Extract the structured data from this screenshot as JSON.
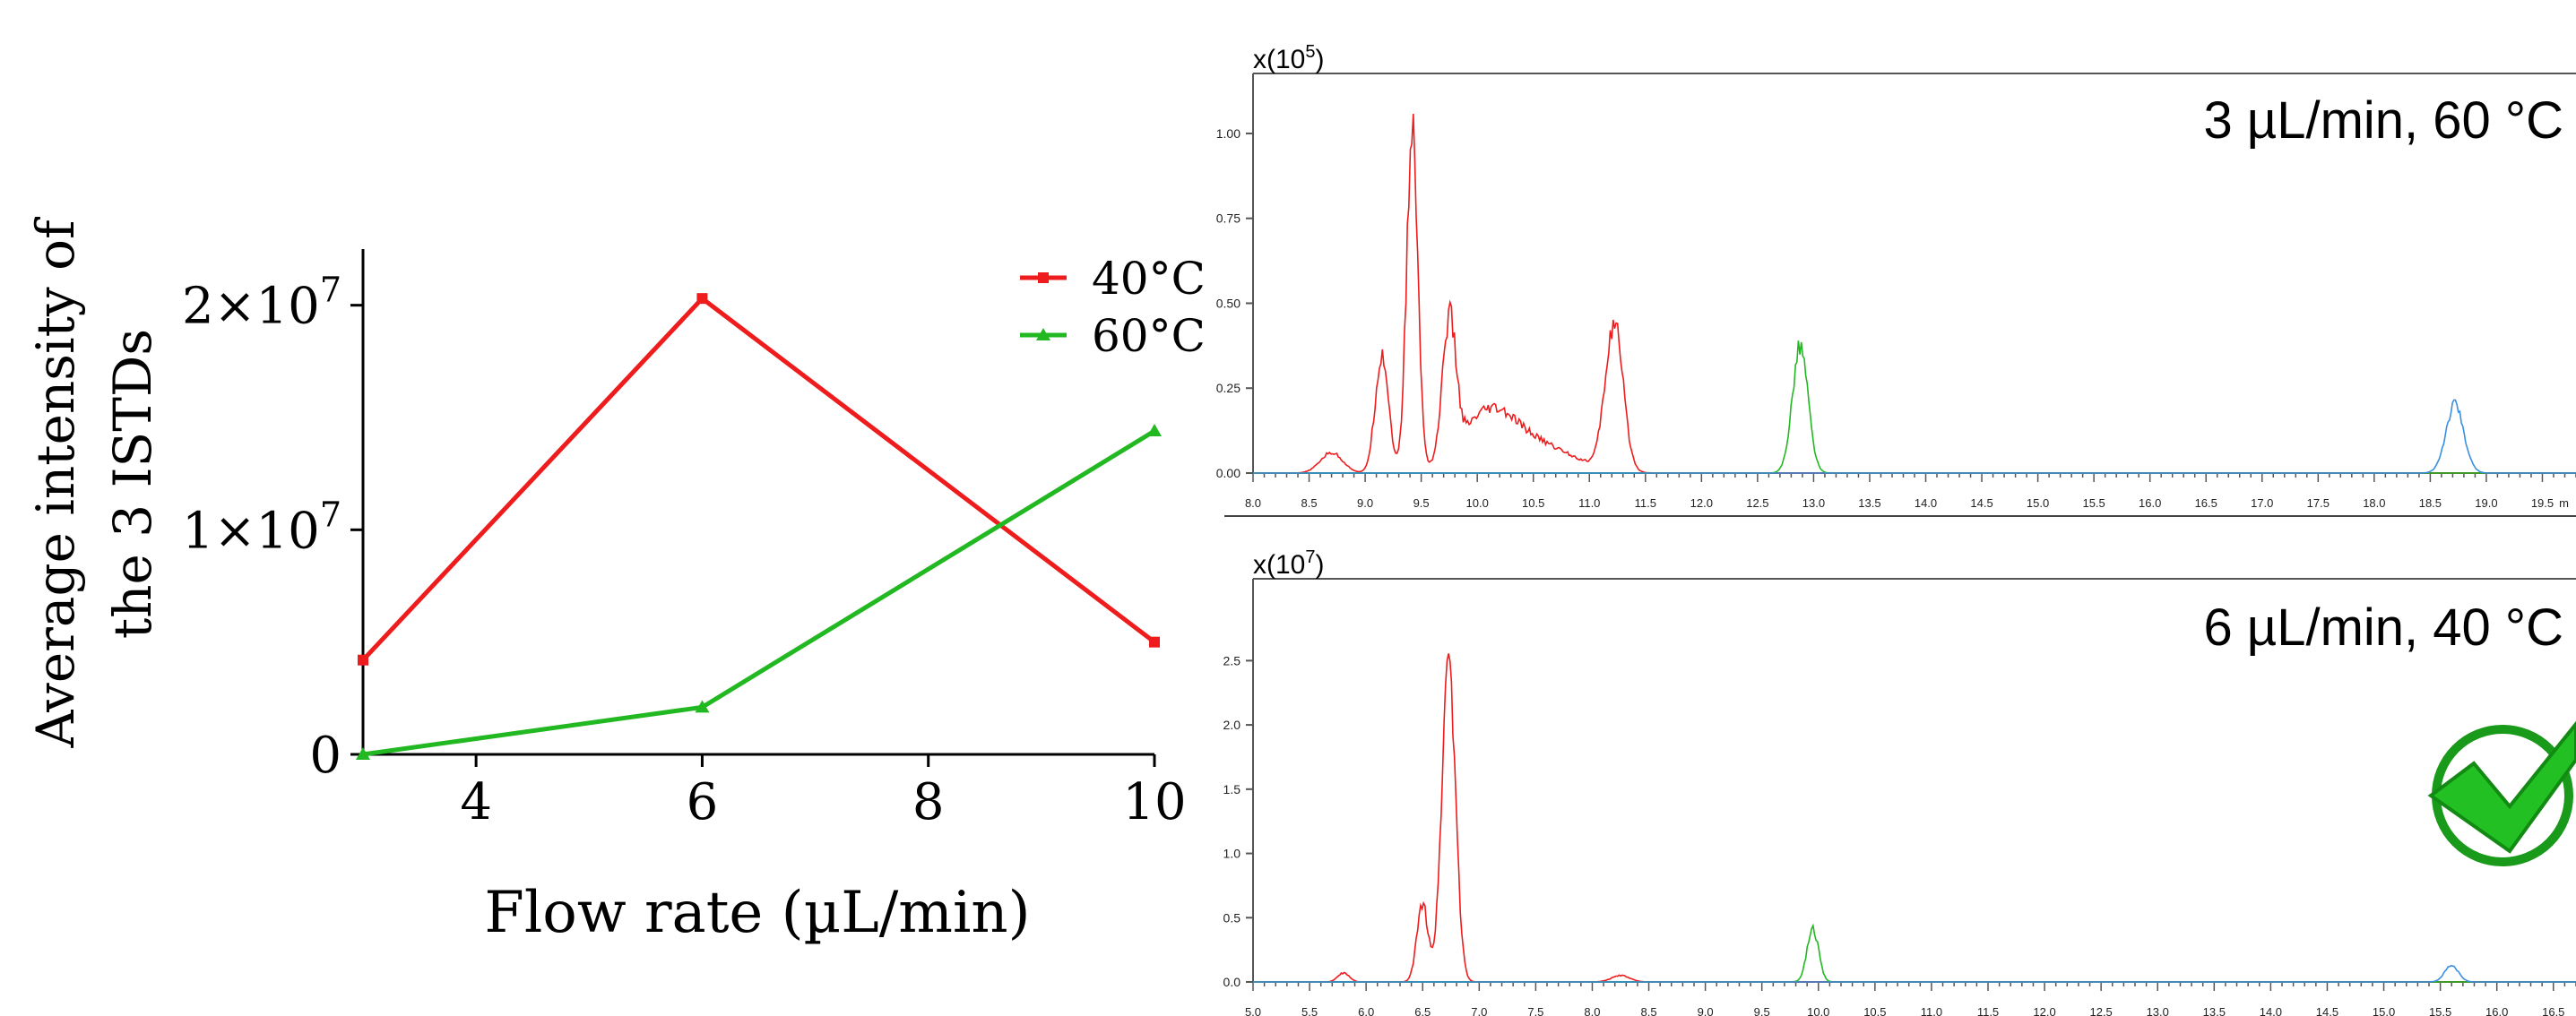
{
  "line_chart": {
    "ylabel_line1": "Average intensity of",
    "ylabel_line2": "the 3 ISTDs",
    "xlabel": "Flow rate (µL/min)",
    "xticks": [
      "4",
      "6",
      "8",
      "10"
    ],
    "yticks": [
      {
        "value": 0,
        "base": "0",
        "exp": ""
      },
      {
        "value": 10000000,
        "base": "1×10",
        "exp": "7"
      },
      {
        "value": 20000000,
        "base": "2×10",
        "exp": "7"
      }
    ]
  },
  "top_chromatogram": {
    "scale_base": "x(10",
    "scale_exp": "5",
    "scale_close": ")",
    "condition": "3 µL/min, 60 °C",
    "yticks": [
      "0.00",
      "0.25",
      "0.50",
      "0.75",
      "1.00"
    ],
    "xticks": [
      "8.0",
      "8.5",
      "9.0",
      "9.5",
      "10.0",
      "10.5",
      "11.0",
      "11.5",
      "12.0",
      "12.5",
      "13.0",
      "13.5",
      "14.0",
      "14.5",
      "15.0",
      "15.5",
      "16.0",
      "16.5",
      "17.0",
      "17.5",
      "18.0",
      "18.5",
      "19.0",
      "19.5"
    ],
    "xunit": "m"
  },
  "bottom_chromatogram": {
    "scale_base": "x(10",
    "scale_exp": "7",
    "scale_close": ")",
    "condition": "6 µL/min, 40 °C",
    "yticks": [
      "0.0",
      "0.5",
      "1.0",
      "1.5",
      "2.0",
      "2.5"
    ],
    "xticks": [
      "5.0",
      "5.5",
      "6.0",
      "6.5",
      "7.0",
      "7.5",
      "8.0",
      "8.5",
      "9.0",
      "9.5",
      "10.0",
      "10.5",
      "11.0",
      "11.5",
      "12.0",
      "12.5",
      "13.0",
      "13.5",
      "14.0",
      "14.5",
      "15.0",
      "15.5",
      "16.0",
      "16.5"
    ],
    "check_icon": "green-check-circle-icon"
  },
  "colors": {
    "red": "#ee1c1c",
    "green": "#22b822",
    "blue": "#3a8fe0"
  },
  "chart_data": [
    {
      "type": "line",
      "xlabel": "Flow rate (µL/min)",
      "ylabel": "Average intensity of the 3 ISTDs",
      "x": [
        3,
        6,
        10
      ],
      "xlim": [
        3,
        10
      ],
      "ylim": [
        0,
        22500000
      ],
      "series": [
        {
          "name": "40°C",
          "color": "#ee1c1c",
          "marker": "square",
          "values": [
            4200000,
            20300000,
            5000000
          ]
        },
        {
          "name": "60°C",
          "color": "#22b822",
          "marker": "triangle",
          "values": [
            0,
            2100000,
            14400000
          ]
        }
      ],
      "legend": "top-right"
    },
    {
      "type": "line",
      "title": "3 µL/min, 60 °C",
      "xlim": [
        8.0,
        19.8
      ],
      "ylim": [
        0,
        1.05
      ],
      "series": [
        {
          "color": "#ee1c1c",
          "peaks": [
            [
              8.7,
              0.06,
              0.1
            ],
            [
              9.15,
              0.35,
              0.06
            ],
            [
              9.42,
              1.0,
              0.05
            ],
            [
              9.75,
              0.4,
              0.06
            ],
            [
              10.1,
              0.17,
              0.25
            ],
            [
              10.6,
              0.07,
              0.3
            ],
            [
              11.22,
              0.43,
              0.08
            ]
          ]
        },
        {
          "color": "#22b822",
          "peaks": [
            [
              12.88,
              0.37,
              0.07
            ]
          ]
        },
        {
          "color": "#3a8fe0",
          "peaks": [
            [
              18.72,
              0.2,
              0.08
            ]
          ]
        }
      ]
    },
    {
      "type": "line",
      "title": "6 µL/min, 40 °C",
      "xlim": [
        5.0,
        16.7
      ],
      "ylim": [
        0,
        2.9
      ],
      "series": [
        {
          "color": "#ee1c1c",
          "peaks": [
            [
              5.8,
              0.07,
              0.05
            ],
            [
              6.5,
              0.6,
              0.05
            ],
            [
              6.73,
              2.55,
              0.06
            ],
            [
              8.25,
              0.05,
              0.08
            ]
          ]
        },
        {
          "color": "#22b822",
          "peaks": [
            [
              9.95,
              0.42,
              0.05
            ]
          ]
        },
        {
          "color": "#3a8fe0",
          "peaks": [
            [
              15.6,
              0.13,
              0.06
            ]
          ]
        }
      ]
    }
  ]
}
